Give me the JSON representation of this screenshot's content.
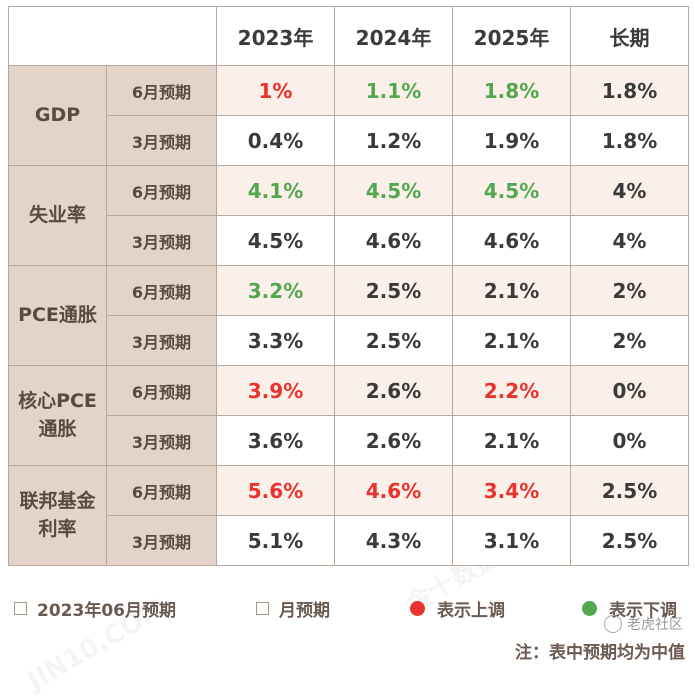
{
  "header": {
    "corner": "",
    "years": [
      "2023年",
      "2024年",
      "2025年",
      "长期"
    ]
  },
  "rows": [
    {
      "metric": "GDP",
      "period": "6月预期",
      "values": [
        "1%",
        "1.1%",
        "1.8%",
        "1.8%"
      ],
      "status": [
        "up",
        "down",
        "down",
        "none"
      ]
    },
    {
      "metric": "GDP",
      "period": "3月预期",
      "values": [
        "0.4%",
        "1.2%",
        "1.9%",
        "1.8%"
      ],
      "status": [
        "none",
        "none",
        "none",
        "none"
      ]
    },
    {
      "metric": "失业率",
      "period": "6月预期",
      "values": [
        "4.1%",
        "4.5%",
        "4.5%",
        "4%"
      ],
      "status": [
        "down",
        "down",
        "down",
        "none"
      ]
    },
    {
      "metric": "失业率",
      "period": "3月预期",
      "values": [
        "4.5%",
        "4.6%",
        "4.6%",
        "4%"
      ],
      "status": [
        "none",
        "none",
        "none",
        "none"
      ]
    },
    {
      "metric": "PCE通胀",
      "period": "6月预期",
      "values": [
        "3.2%",
        "2.5%",
        "2.1%",
        "2%"
      ],
      "status": [
        "down",
        "none",
        "none",
        "none"
      ]
    },
    {
      "metric": "PCE通胀",
      "period": "3月预期",
      "values": [
        "3.3%",
        "2.5%",
        "2.1%",
        "2%"
      ],
      "status": [
        "none",
        "none",
        "none",
        "none"
      ]
    },
    {
      "metric": "核心PCE通胀",
      "period": "6月预期",
      "values": [
        "3.9%",
        "2.6%",
        "2.2%",
        "0%"
      ],
      "status": [
        "up",
        "none",
        "up",
        "none"
      ]
    },
    {
      "metric": "核心PCE通胀",
      "period": "3月预期",
      "values": [
        "3.6%",
        "2.6%",
        "2.1%",
        "0%"
      ],
      "status": [
        "none",
        "none",
        "none",
        "none"
      ]
    },
    {
      "metric": "联邦基金利率",
      "period": "6月预期",
      "values": [
        "5.6%",
        "4.6%",
        "3.4%",
        "2.5%"
      ],
      "status": [
        "up",
        "up",
        "up",
        "none"
      ]
    },
    {
      "metric": "联邦基金利率",
      "period": "3月预期",
      "values": [
        "5.1%",
        "4.3%",
        "3.1%",
        "2.5%"
      ],
      "status": [
        "none",
        "none",
        "none",
        "none"
      ]
    }
  ],
  "metric_labels": [
    {
      "name": "GDP",
      "lines": [
        "GDP"
      ]
    },
    {
      "name": "失业率",
      "lines": [
        "失业率"
      ]
    },
    {
      "name": "PCE通胀",
      "lines": [
        "PCE通胀"
      ]
    },
    {
      "name": "核心PCE通胀",
      "lines": [
        "核心PCE",
        "通胀"
      ]
    },
    {
      "name": "联邦基金利率",
      "lines": [
        "联邦基金",
        "利率"
      ]
    }
  ],
  "legend": {
    "june_label": "2023年06月预期",
    "march_label": "月预期",
    "up_label": "表示上调",
    "down_label": "表示下调"
  },
  "colors": {
    "up": "#e8342c",
    "down": "#52a84f",
    "header_bg": "#e3d3c8",
    "june_row_bg": "#fbefe9"
  },
  "note": "注：表中预期均为中值",
  "watermark_brand": "老虎社区",
  "watermark_marks": [
    "金十数据",
    "JIN10.COM"
  ]
}
